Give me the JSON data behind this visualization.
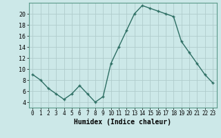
{
  "x": [
    0,
    1,
    2,
    3,
    4,
    5,
    6,
    7,
    8,
    9,
    10,
    11,
    12,
    13,
    14,
    15,
    16,
    17,
    18,
    19,
    20,
    21,
    22,
    23
  ],
  "y": [
    9,
    8,
    6.5,
    5.5,
    4.5,
    5.5,
    7,
    5.5,
    4,
    5,
    11,
    14,
    17,
    20,
    21.5,
    21,
    20.5,
    20,
    19.5,
    15,
    13,
    11,
    9,
    7.5
  ],
  "line_color": "#2d6e63",
  "marker": "+",
  "marker_size": 3,
  "line_width": 1.0,
  "bg_color": "#cce8e8",
  "grid_color": "#b0cccc",
  "xlabel": "Humidex (Indice chaleur)",
  "xlabel_fontsize": 7,
  "ylabel_ticks": [
    4,
    6,
    8,
    10,
    12,
    14,
    16,
    18,
    20
  ],
  "ylim": [
    3,
    22
  ],
  "xlim": [
    -0.5,
    23.5
  ],
  "xtick_fontsize": 5.5,
  "ytick_fontsize": 6
}
